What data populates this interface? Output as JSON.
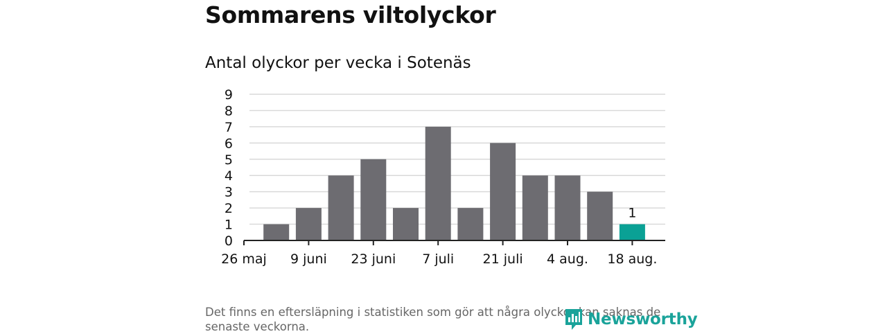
{
  "title": "Sommarens viltolyckor",
  "subtitle": "Antal olyckor per vecka i Sotenäs",
  "footnote": "Det finns en eftersläpning i statistiken som gör att några olyckor kan saknas de senaste veckorna.",
  "brand": {
    "name": "Newsworthy",
    "icon": "newsworthy-logo-icon"
  },
  "colors": {
    "bar": "#6d6c71",
    "highlight": "#0aa195",
    "grid": "#d9d9d9",
    "axis": "#222222",
    "brand": "#1aa39a"
  },
  "chart_data": {
    "type": "bar",
    "title": "Antal olyckor per vecka i Sotenäs",
    "xlabel": "",
    "ylabel": "",
    "ylim": [
      0,
      9
    ],
    "yticks": [
      0,
      1,
      2,
      3,
      4,
      5,
      6,
      7,
      8,
      9
    ],
    "grid": true,
    "categories": [
      "26 maj",
      "",
      "9 juni",
      "",
      "23 juni",
      "",
      "7 juli",
      "",
      "21 juli",
      "",
      "4 aug.",
      "",
      "18 aug."
    ],
    "values": [
      0,
      1,
      2,
      4,
      5,
      2,
      7,
      2,
      6,
      4,
      4,
      3,
      1
    ],
    "highlight_index": 12,
    "data_labels": [
      {
        "index": 12,
        "text": "1"
      }
    ]
  }
}
